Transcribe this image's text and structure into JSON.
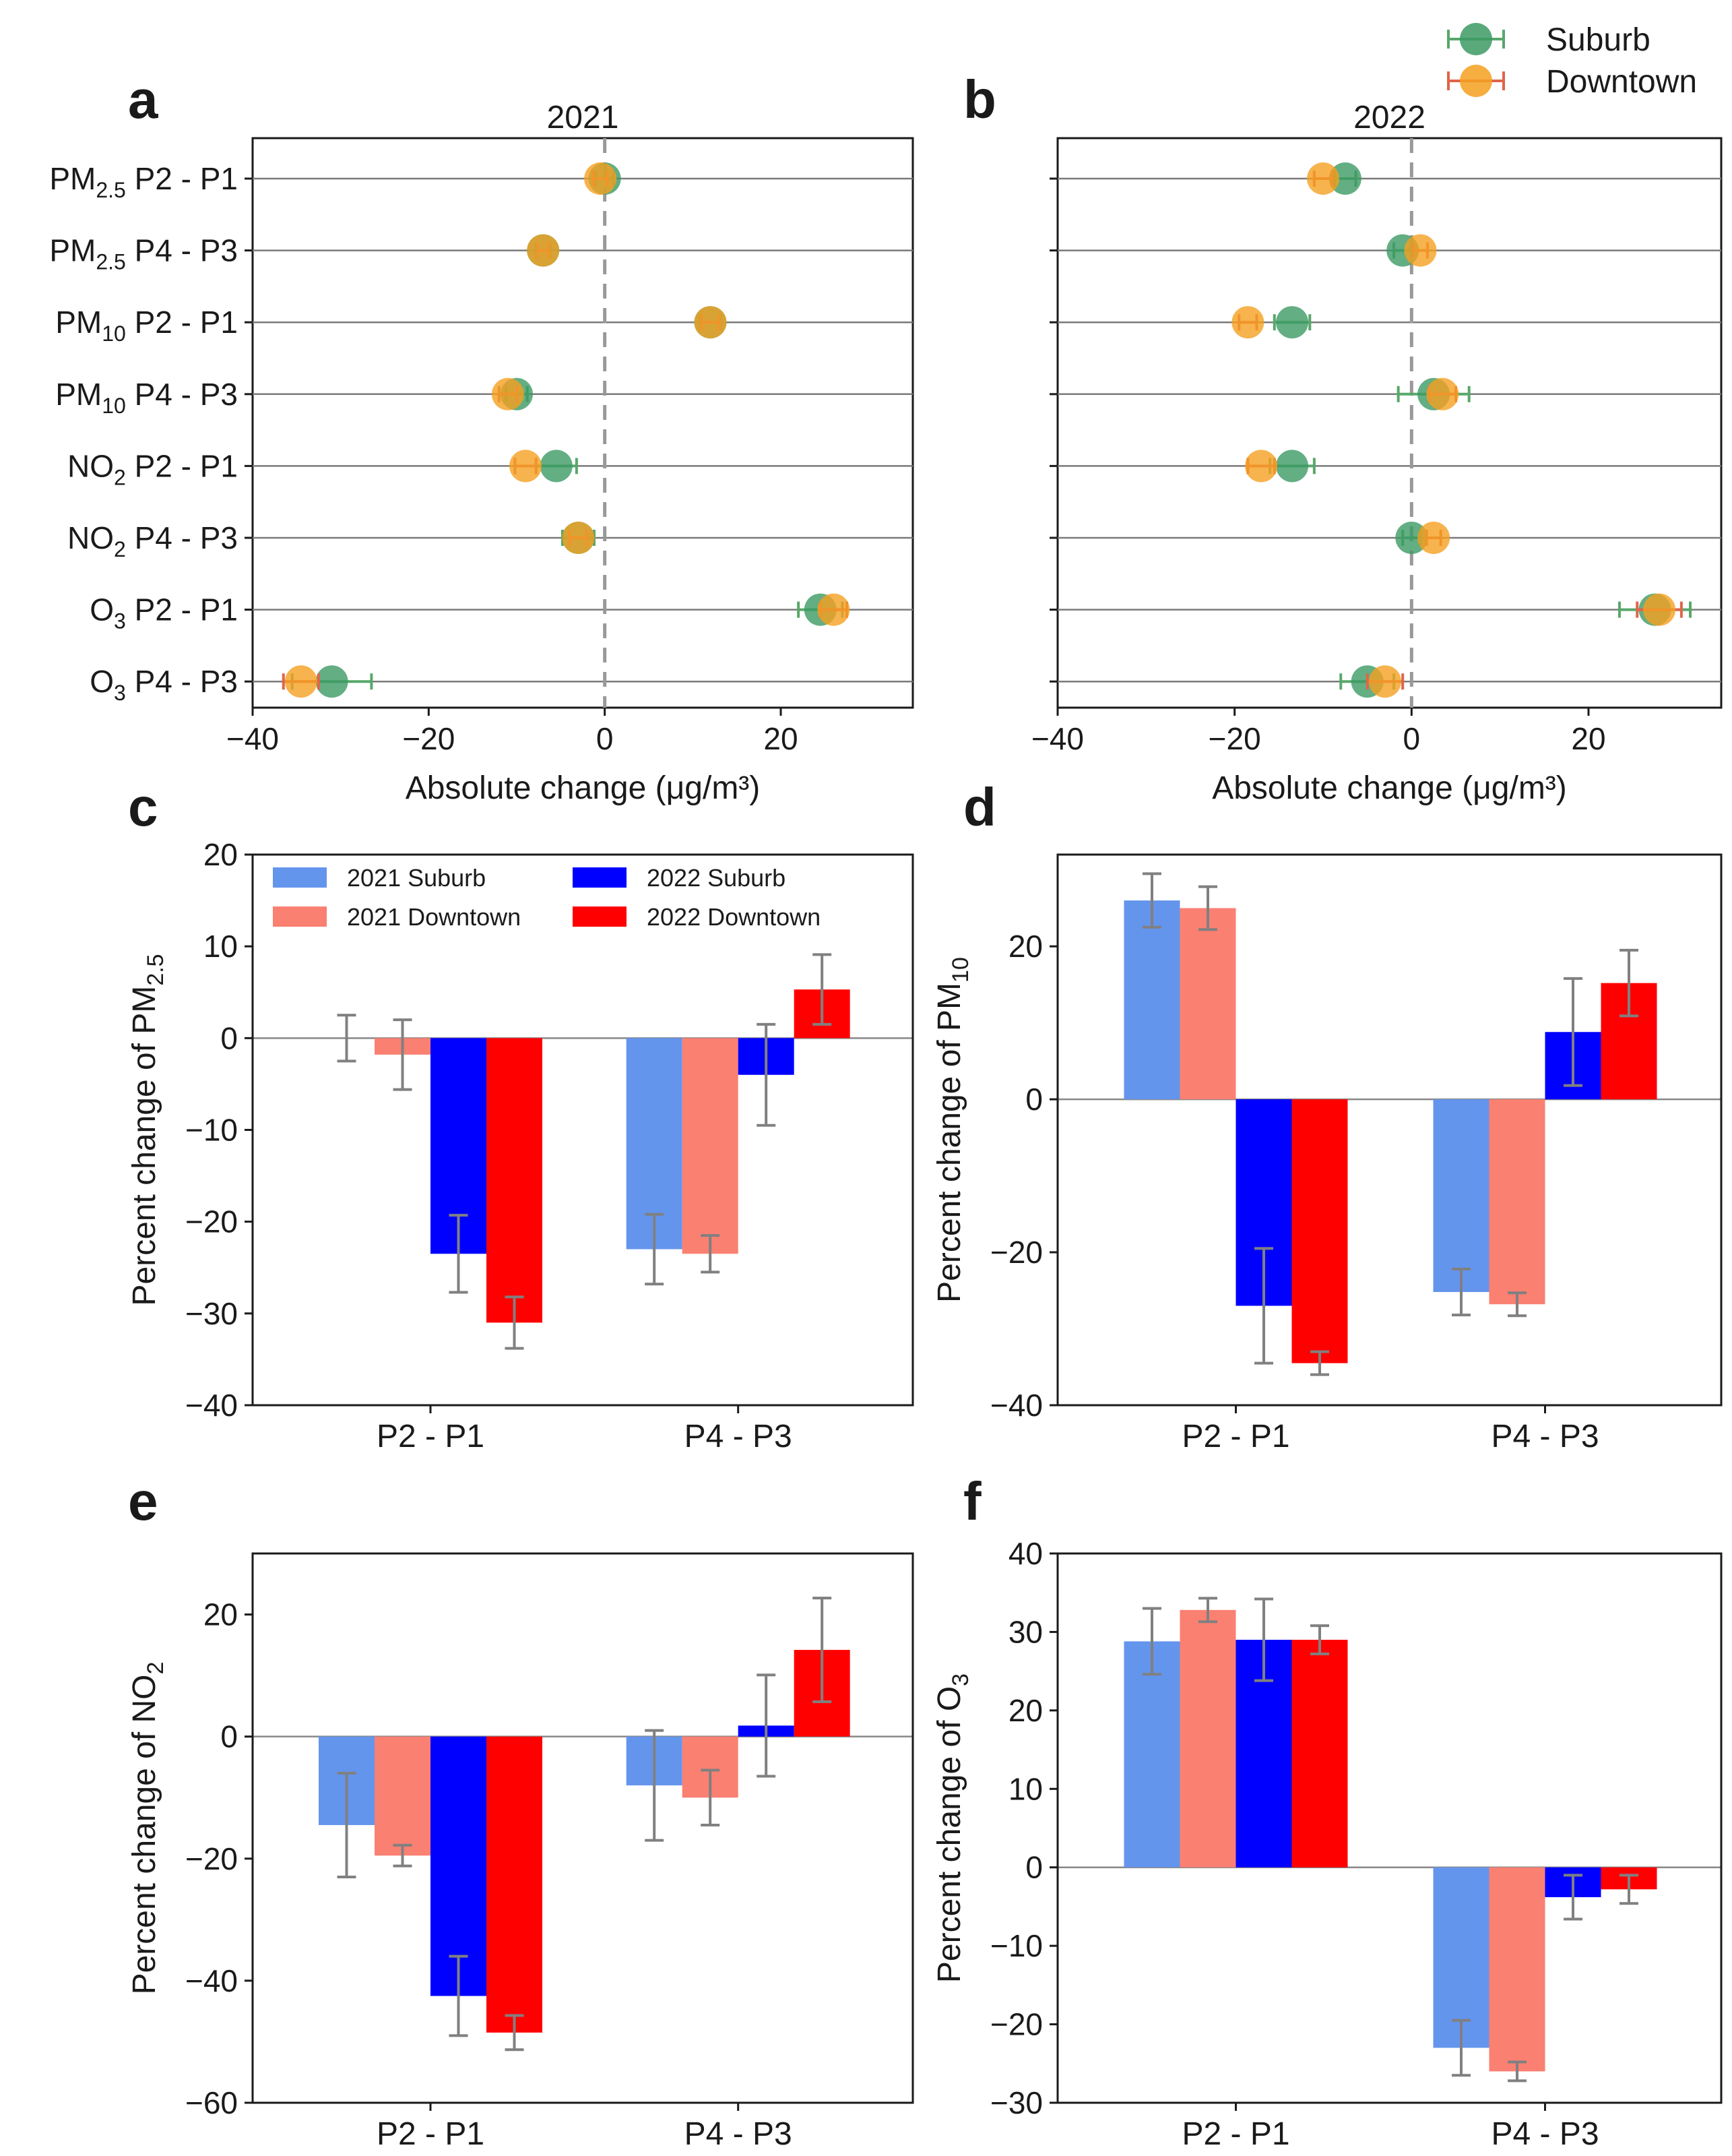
{
  "legend_top": {
    "suburb": "Suburb",
    "downtown": "Downtown"
  },
  "colors": {
    "suburb_dot": "#3c9a64",
    "downtown_dot": "#f5a020",
    "suburb_err": "#58a86a",
    "downtown_err": "#e0654a"
  },
  "chart_data": [
    {
      "panel": "a",
      "type": "scatter",
      "title": "2021",
      "xlabel": "Absolute change (μg/m³)",
      "xlim": [
        -40,
        35
      ],
      "xticks": [
        -40,
        -20,
        0,
        20
      ],
      "categories": [
        {
          "base": "PM",
          "sub": "2.5",
          "rest": " P2 - P1"
        },
        {
          "base": "PM",
          "sub": "2.5",
          "rest": " P4 - P3"
        },
        {
          "base": "PM",
          "sub": "10",
          "rest": " P2 - P1"
        },
        {
          "base": "PM",
          "sub": "10",
          "rest": " P4 - P3"
        },
        {
          "base": "NO",
          "sub": "2",
          "rest": " P2 - P1"
        },
        {
          "base": "NO",
          "sub": "2",
          "rest": " P4 - P3"
        },
        {
          "base": "O",
          "sub": "3",
          "rest": " P2 - P1"
        },
        {
          "base": "O",
          "sub": "3",
          "rest": " P4 - P3"
        }
      ],
      "series": [
        {
          "name": "Suburb",
          "values": [
            0,
            -7,
            12,
            -10,
            -5.5,
            -3,
            24.5,
            -31
          ],
          "err": [
            1.0,
            0.8,
            1.2,
            1.2,
            2.3,
            1.8,
            2.5,
            4.5
          ]
        },
        {
          "name": "Downtown",
          "values": [
            -0.5,
            -7,
            12,
            -11,
            -9,
            -3,
            26,
            -34.5
          ],
          "err": [
            0.8,
            0.6,
            1.0,
            1.0,
            1.2,
            1.0,
            1.5,
            2.0
          ]
        }
      ]
    },
    {
      "panel": "b",
      "type": "scatter",
      "title": "2022",
      "xlabel": "Absolute change (μg/m³)",
      "xlim": [
        -40,
        35
      ],
      "xticks": [
        -40,
        -20,
        0,
        20
      ],
      "series": [
        {
          "name": "Suburb",
          "values": [
            -7.5,
            -1,
            -13.5,
            2.5,
            -13.5,
            0,
            27.5,
            -5
          ],
          "err": [
            1.2,
            1.0,
            2.0,
            4.0,
            2.5,
            1.0,
            4.0,
            3.0
          ]
        },
        {
          "name": "Downtown",
          "values": [
            -10,
            1,
            -18.5,
            3.5,
            -17,
            2.5,
            28,
            -3
          ],
          "err": [
            1.0,
            0.8,
            1.0,
            1.5,
            1.5,
            0.8,
            2.5,
            2.0
          ]
        }
      ]
    },
    {
      "panel": "c",
      "type": "bar",
      "ylabel_base": "Percent change of PM",
      "ylabel_sub": "2.5",
      "categories": [
        "P2 - P1",
        "P4 - P3"
      ],
      "ylim": [
        -40,
        20
      ],
      "yticks": [
        -40,
        -30,
        -20,
        -10,
        0,
        10,
        20
      ],
      "series": [
        {
          "name": "2021 Suburb",
          "values": [
            0,
            -23
          ],
          "err": [
            2.5,
            3.8
          ]
        },
        {
          "name": "2021 Downtown",
          "values": [
            -1.8,
            -23.5
          ],
          "err": [
            3.8,
            2.0
          ]
        },
        {
          "name": "2022 Suburb",
          "values": [
            -23.5,
            -4
          ],
          "err": [
            4.2,
            5.5
          ]
        },
        {
          "name": "2022 Downtown",
          "values": [
            -31,
            5.3
          ],
          "err": [
            2.8,
            3.8
          ]
        }
      ]
    },
    {
      "panel": "d",
      "type": "bar",
      "ylabel_base": "Percent change of PM",
      "ylabel_sub": "10",
      "categories": [
        "P2 - P1",
        "P4 - P3"
      ],
      "ylim": [
        -40,
        32
      ],
      "yticks": [
        -40,
        -20,
        0,
        20
      ],
      "series": [
        {
          "name": "2021 Suburb",
          "values": [
            26,
            -25.2
          ],
          "err": [
            3.5,
            3.0
          ]
        },
        {
          "name": "2021 Downtown",
          "values": [
            25,
            -26.8
          ],
          "err": [
            2.8,
            1.5
          ]
        },
        {
          "name": "2022 Suburb",
          "values": [
            -27,
            8.8
          ],
          "err": [
            7.5,
            7.0
          ]
        },
        {
          "name": "2022 Downtown",
          "values": [
            -34.5,
            15.2
          ],
          "err": [
            1.5,
            4.3
          ]
        }
      ]
    },
    {
      "panel": "e",
      "type": "bar",
      "ylabel_base": "Percent change of NO",
      "ylabel_sub": "2",
      "categories": [
        "P2 - P1",
        "P4 - P3"
      ],
      "ylim": [
        -60,
        30
      ],
      "yticks": [
        -60,
        -40,
        -20,
        0,
        20
      ],
      "series": [
        {
          "name": "2021 Suburb",
          "values": [
            -14.5,
            -8
          ],
          "err": [
            8.5,
            9.0
          ]
        },
        {
          "name": "2021 Downtown",
          "values": [
            -19.5,
            -10
          ],
          "err": [
            1.7,
            4.5
          ]
        },
        {
          "name": "2022 Suburb",
          "values": [
            -42.5,
            1.8
          ],
          "err": [
            6.5,
            8.3
          ]
        },
        {
          "name": "2022 Downtown",
          "values": [
            -48.5,
            14.2
          ],
          "err": [
            2.8,
            8.5
          ]
        }
      ]
    },
    {
      "panel": "f",
      "type": "bar",
      "ylabel_base": "Percent change of O",
      "ylabel_sub": "3",
      "categories": [
        "P2 - P1",
        "P4 - P3"
      ],
      "ylim": [
        -30,
        40
      ],
      "yticks": [
        -30,
        -20,
        -10,
        0,
        10,
        20,
        30,
        40
      ],
      "series": [
        {
          "name": "2021 Suburb",
          "values": [
            28.8,
            -23
          ],
          "err": [
            4.2,
            3.5
          ]
        },
        {
          "name": "2021 Downtown",
          "values": [
            32.8,
            -26
          ],
          "err": [
            1.5,
            1.2
          ]
        },
        {
          "name": "2022 Suburb",
          "values": [
            29,
            -3.8
          ],
          "err": [
            5.2,
            2.8
          ]
        },
        {
          "name": "2022 Downtown",
          "values": [
            29,
            -2.8
          ],
          "err": [
            1.8,
            1.8
          ]
        }
      ]
    }
  ],
  "bar_legend": [
    "2021 Suburb",
    "2021 Downtown",
    "2022 Suburb",
    "2022 Downtown"
  ],
  "bar_colors": [
    "#6495ed",
    "#fa8072",
    "#0000ff",
    "#ff0000"
  ]
}
